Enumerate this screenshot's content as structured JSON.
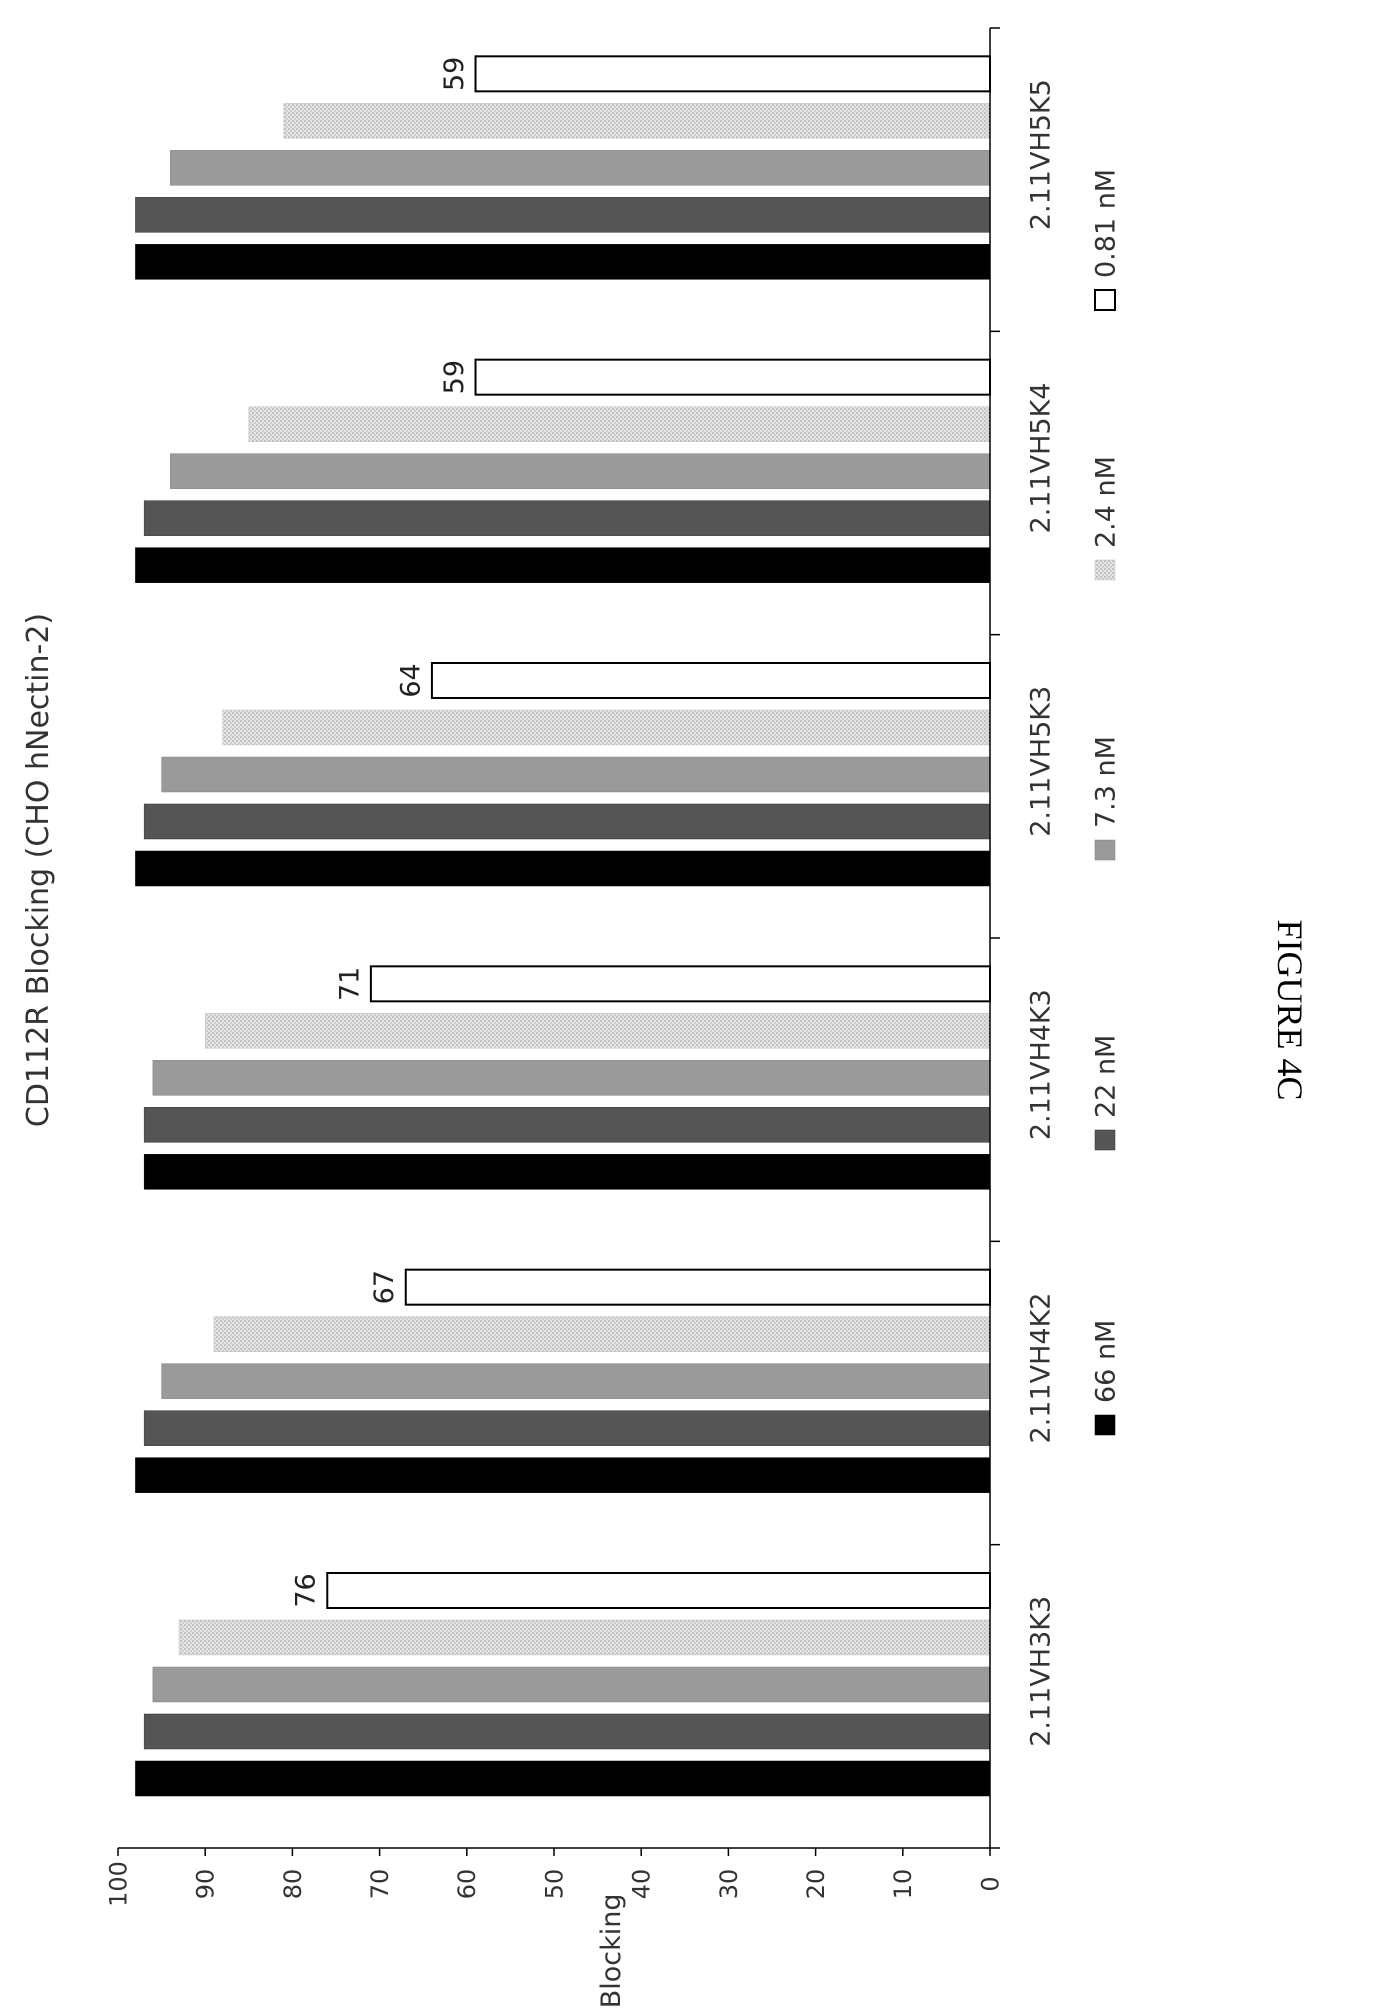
{
  "chart_data": {
    "type": "bar",
    "orientation": "rotated-90",
    "title": "CD112R Blocking (CHO hNectin-2)",
    "ylabel": "% Blocking",
    "xlabel": "",
    "ylim": [
      0,
      100
    ],
    "yticks": [
      "0",
      "10",
      "20",
      "30",
      "40",
      "50",
      "60",
      "70",
      "80",
      "90",
      "100"
    ],
    "categories": [
      "2.11VH3K3",
      "2.11VH4K2",
      "2.11VH4K3",
      "2.11VH5K3",
      "2.11VH5K4",
      "2.11VH5K5"
    ],
    "series": [
      {
        "name": "66 nM",
        "values": [
          98,
          98,
          97,
          98,
          98,
          98
        ]
      },
      {
        "name": "22 nM",
        "values": [
          97,
          97,
          97,
          97,
          97,
          98
        ]
      },
      {
        "name": "7.3 nM",
        "values": [
          96,
          95,
          96,
          95,
          94,
          94
        ]
      },
      {
        "name": "2.4 nM",
        "values": [
          93,
          89,
          90,
          88,
          85,
          81
        ]
      },
      {
        "name": "0.81 nM",
        "values": [
          76,
          67,
          71,
          64,
          59,
          59
        ],
        "data_labels": [
          "76",
          "67",
          "71",
          "64",
          "59",
          "59"
        ]
      }
    ],
    "legend_position": "bottom",
    "grid": false
  },
  "colors": {
    "series": [
      "#000000",
      "#555555",
      "#9a9a9a",
      "#d6d6d6",
      "#ffffff"
    ],
    "series_stroke": [
      "#000000",
      "#333333",
      "#808080",
      "#c4c4c4",
      "#000000"
    ],
    "axis": "#000000"
  },
  "figure_caption": "FIGURE 4C"
}
